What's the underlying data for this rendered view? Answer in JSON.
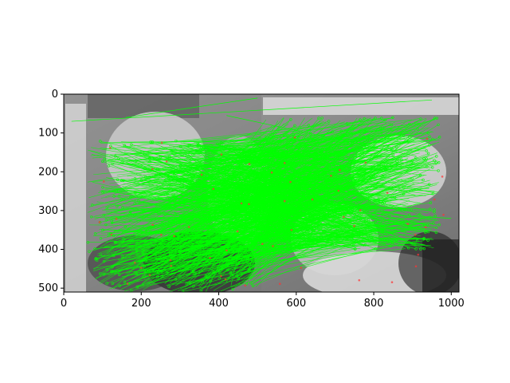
{
  "figure": {
    "x_ticks": [
      {
        "label": "0"
      },
      {
        "label": "200"
      },
      {
        "label": "400"
      },
      {
        "label": "600"
      },
      {
        "label": "800"
      },
      {
        "label": "1000"
      }
    ],
    "y_ticks": [
      {
        "label": "0"
      },
      {
        "label": "100"
      },
      {
        "label": "200"
      },
      {
        "label": "300"
      },
      {
        "label": "400"
      },
      {
        "label": "500"
      }
    ],
    "colors": {
      "match_line": "#00ff00",
      "keypoint": "#ff3333",
      "background_dark": "#3a3a3a",
      "background_light": "#cfcfcf"
    }
  }
}
